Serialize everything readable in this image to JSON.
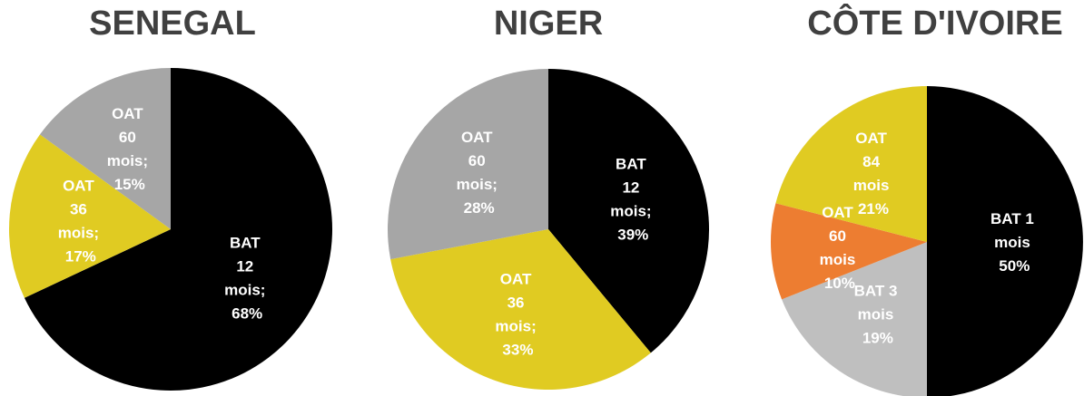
{
  "chart_data": [
    {
      "type": "pie",
      "title": "SENEGAL",
      "values": [
        68,
        17,
        15
      ],
      "value_labels": [
        "BAT\n12\nmois;\n68%",
        "OAT\n36\nmois;\n17%",
        "OAT\n60\nmois;\n15%"
      ],
      "colors": [
        "#000000",
        "#e0cb22",
        "#a6a6a6"
      ]
    },
    {
      "type": "pie",
      "title": "NIGER",
      "values": [
        39,
        33,
        28
      ],
      "value_labels": [
        "BAT\n12\nmois;\n39%",
        "OAT\n36\nmois;\n33%",
        "OAT\n60\nmois;\n28%"
      ],
      "colors": [
        "#000000",
        "#e0cb22",
        "#a6a6a6"
      ]
    },
    {
      "type": "pie",
      "title": "CÔTE D'IVOIRE",
      "values": [
        50,
        19,
        10,
        21
      ],
      "value_labels": [
        "BAT 1\nmois\n50%",
        "BAT 3\nmois\n19%",
        "OAT\n60\nmois\n10%",
        "OAT\n84\nmois\n21%"
      ],
      "colors": [
        "#000000",
        "#bfbfbf",
        "#ed7d31",
        "#e0cb22"
      ]
    }
  ]
}
